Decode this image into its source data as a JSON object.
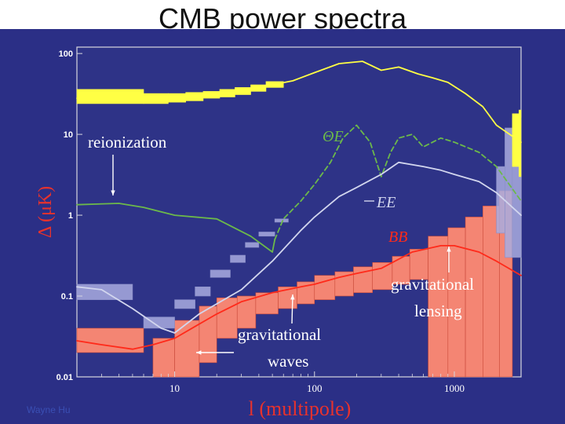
{
  "slide": {
    "title": "CMB power spectra",
    "credit": "Wayne Hu"
  },
  "colors": {
    "background": "#2b2f86",
    "plot_area": "#2e3387",
    "frame": "#d8d8e0",
    "tt": "#ffff44",
    "te": "#6cb94a",
    "ee": "#d2d6ee",
    "ee_box": "#a8acdf",
    "bb": "#ff2a1a",
    "bb_box": "#ff8a72",
    "annotation": "#ffffff",
    "ylabel": "#e8322c"
  },
  "chart_data": {
    "type": "line",
    "title": "CMB power spectra",
    "xlabel": "l (multipole)",
    "ylabel": "Δ (μK)",
    "xscale": "log",
    "yscale": "log",
    "xlim": [
      2,
      3000
    ],
    "ylim": [
      0.01,
      120
    ],
    "xticks": [
      10,
      100,
      1000
    ],
    "xtick_labels": [
      "10",
      "100",
      "1000"
    ],
    "yticks": [
      0.01,
      0.1,
      1,
      10,
      100
    ],
    "ytick_labels": [
      "0.01",
      "0.1",
      "1",
      "10",
      "100"
    ],
    "series": [
      {
        "key": "tt",
        "style": "solid",
        "x": [
          2,
          5,
          10,
          20,
          40,
          70,
          100,
          150,
          220,
          300,
          400,
          550,
          700,
          900,
          1200,
          1600,
          2000,
          3000
        ],
        "y": [
          28,
          28,
          29,
          32,
          38,
          46,
          58,
          75,
          80,
          62,
          68,
          56,
          50,
          44,
          32,
          22,
          13,
          8
        ]
      },
      {
        "key": "te",
        "label": "ΘE",
        "style": "mixed",
        "x": [
          2,
          4,
          6,
          10,
          20,
          35,
          50,
          52,
          60,
          80,
          100,
          130,
          160,
          200,
          250,
          300,
          350,
          400,
          500,
          600,
          800,
          1000,
          1500,
          2000,
          3000
        ],
        "y": [
          1.35,
          1.4,
          1.25,
          1.0,
          0.9,
          0.55,
          0.35,
          0.5,
          0.9,
          1.5,
          2.4,
          4.5,
          9,
          13,
          8,
          3,
          6,
          9,
          10,
          7,
          9,
          8,
          6,
          4,
          1.5
        ]
      },
      {
        "key": "ee",
        "label": "EE",
        "style": "solid",
        "x": [
          2,
          3,
          5,
          8,
          10,
          15,
          20,
          30,
          50,
          80,
          100,
          150,
          200,
          300,
          400,
          600,
          800,
          1000,
          1500,
          2000,
          3000
        ],
        "y": [
          0.13,
          0.12,
          0.07,
          0.04,
          0.035,
          0.06,
          0.08,
          0.12,
          0.27,
          0.65,
          0.95,
          1.7,
          2.2,
          3.2,
          4.5,
          4.0,
          3.6,
          3.2,
          2.6,
          1.9,
          1.0
        ]
      },
      {
        "key": "bb",
        "label": "BB",
        "style": "solid",
        "x": [
          2,
          3,
          5,
          7,
          10,
          15,
          20,
          30,
          50,
          80,
          100,
          150,
          200,
          300,
          500,
          800,
          1000,
          1500,
          2000,
          3000
        ],
        "y": [
          0.028,
          0.025,
          0.022,
          0.025,
          0.03,
          0.045,
          0.06,
          0.085,
          0.11,
          0.13,
          0.14,
          0.17,
          0.19,
          0.22,
          0.35,
          0.42,
          0.42,
          0.35,
          0.27,
          0.18
        ]
      }
    ],
    "bands": {
      "tt": [
        [
          2,
          6,
          24,
          36
        ],
        [
          6,
          9,
          24,
          32
        ],
        [
          9,
          12,
          25,
          32
        ],
        [
          12,
          16,
          26,
          33
        ],
        [
          16,
          21,
          28,
          34
        ],
        [
          21,
          27,
          29,
          36
        ],
        [
          27,
          35,
          31,
          38
        ],
        [
          35,
          45,
          34,
          41
        ],
        [
          45,
          60,
          38,
          45
        ],
        [
          2600,
          2900,
          4,
          18
        ],
        [
          2900,
          3000,
          3,
          20
        ]
      ],
      "ee": [
        [
          2,
          5,
          0.09,
          0.14
        ],
        [
          6,
          10,
          0.04,
          0.055
        ],
        [
          10,
          14,
          0.07,
          0.09
        ],
        [
          14,
          18,
          0.1,
          0.13
        ],
        [
          18,
          25,
          0.17,
          0.21
        ],
        [
          25,
          32,
          0.26,
          0.32
        ],
        [
          32,
          40,
          0.4,
          0.46
        ],
        [
          40,
          52,
          0.55,
          0.62
        ],
        [
          52,
          65,
          0.82,
          0.9
        ],
        [
          2000,
          2300,
          0.6,
          4
        ],
        [
          2300,
          2600,
          0.3,
          12
        ],
        [
          2600,
          3000,
          0.3,
          16
        ]
      ],
      "bb": [
        [
          2,
          6,
          0.02,
          0.04
        ],
        [
          7,
          10,
          0.01,
          0.03
        ],
        [
          10,
          15,
          0.01,
          0.05
        ],
        [
          15,
          20,
          0.015,
          0.075
        ],
        [
          20,
          28,
          0.03,
          0.095
        ],
        [
          28,
          38,
          0.04,
          0.1
        ],
        [
          38,
          55,
          0.06,
          0.11
        ],
        [
          55,
          75,
          0.07,
          0.13
        ],
        [
          75,
          100,
          0.08,
          0.15
        ],
        [
          100,
          140,
          0.09,
          0.18
        ],
        [
          140,
          190,
          0.1,
          0.2
        ],
        [
          190,
          260,
          0.11,
          0.23
        ],
        [
          260,
          360,
          0.12,
          0.26
        ],
        [
          360,
          480,
          0.14,
          0.31
        ],
        [
          480,
          650,
          0.16,
          0.38
        ],
        [
          650,
          900,
          0.01,
          0.55
        ],
        [
          900,
          1200,
          0.01,
          0.7
        ],
        [
          1200,
          1600,
          0.01,
          0.95
        ],
        [
          1600,
          2100,
          0.01,
          1.3
        ],
        [
          2100,
          2600,
          0.01,
          2.0
        ]
      ]
    },
    "annotations": {
      "reionization": "reionization",
      "gravitational_waves": [
        "gravitational",
        "waves"
      ],
      "gravitational_lensing": [
        "gravitational",
        "lensing"
      ]
    }
  }
}
